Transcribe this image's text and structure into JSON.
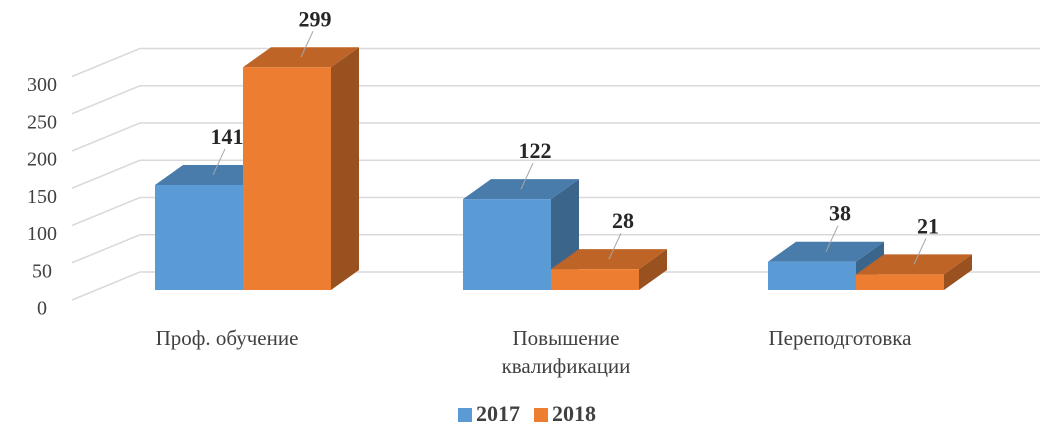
{
  "chart_data": {
    "type": "bar3d",
    "categories": [
      "Проф. обучение",
      "Повышение квалификации",
      "Переподготовка"
    ],
    "series": [
      {
        "name": "2017",
        "color": "#5b9bd5",
        "values": [
          141,
          122,
          38
        ]
      },
      {
        "name": "2018",
        "color": "#ed7d31",
        "values": [
          299,
          28,
          21
        ]
      }
    ],
    "ylim": [
      0,
      300
    ],
    "yticks": [
      0,
      50,
      100,
      150,
      200,
      250,
      300
    ],
    "grid": true,
    "legend": "bottom"
  }
}
